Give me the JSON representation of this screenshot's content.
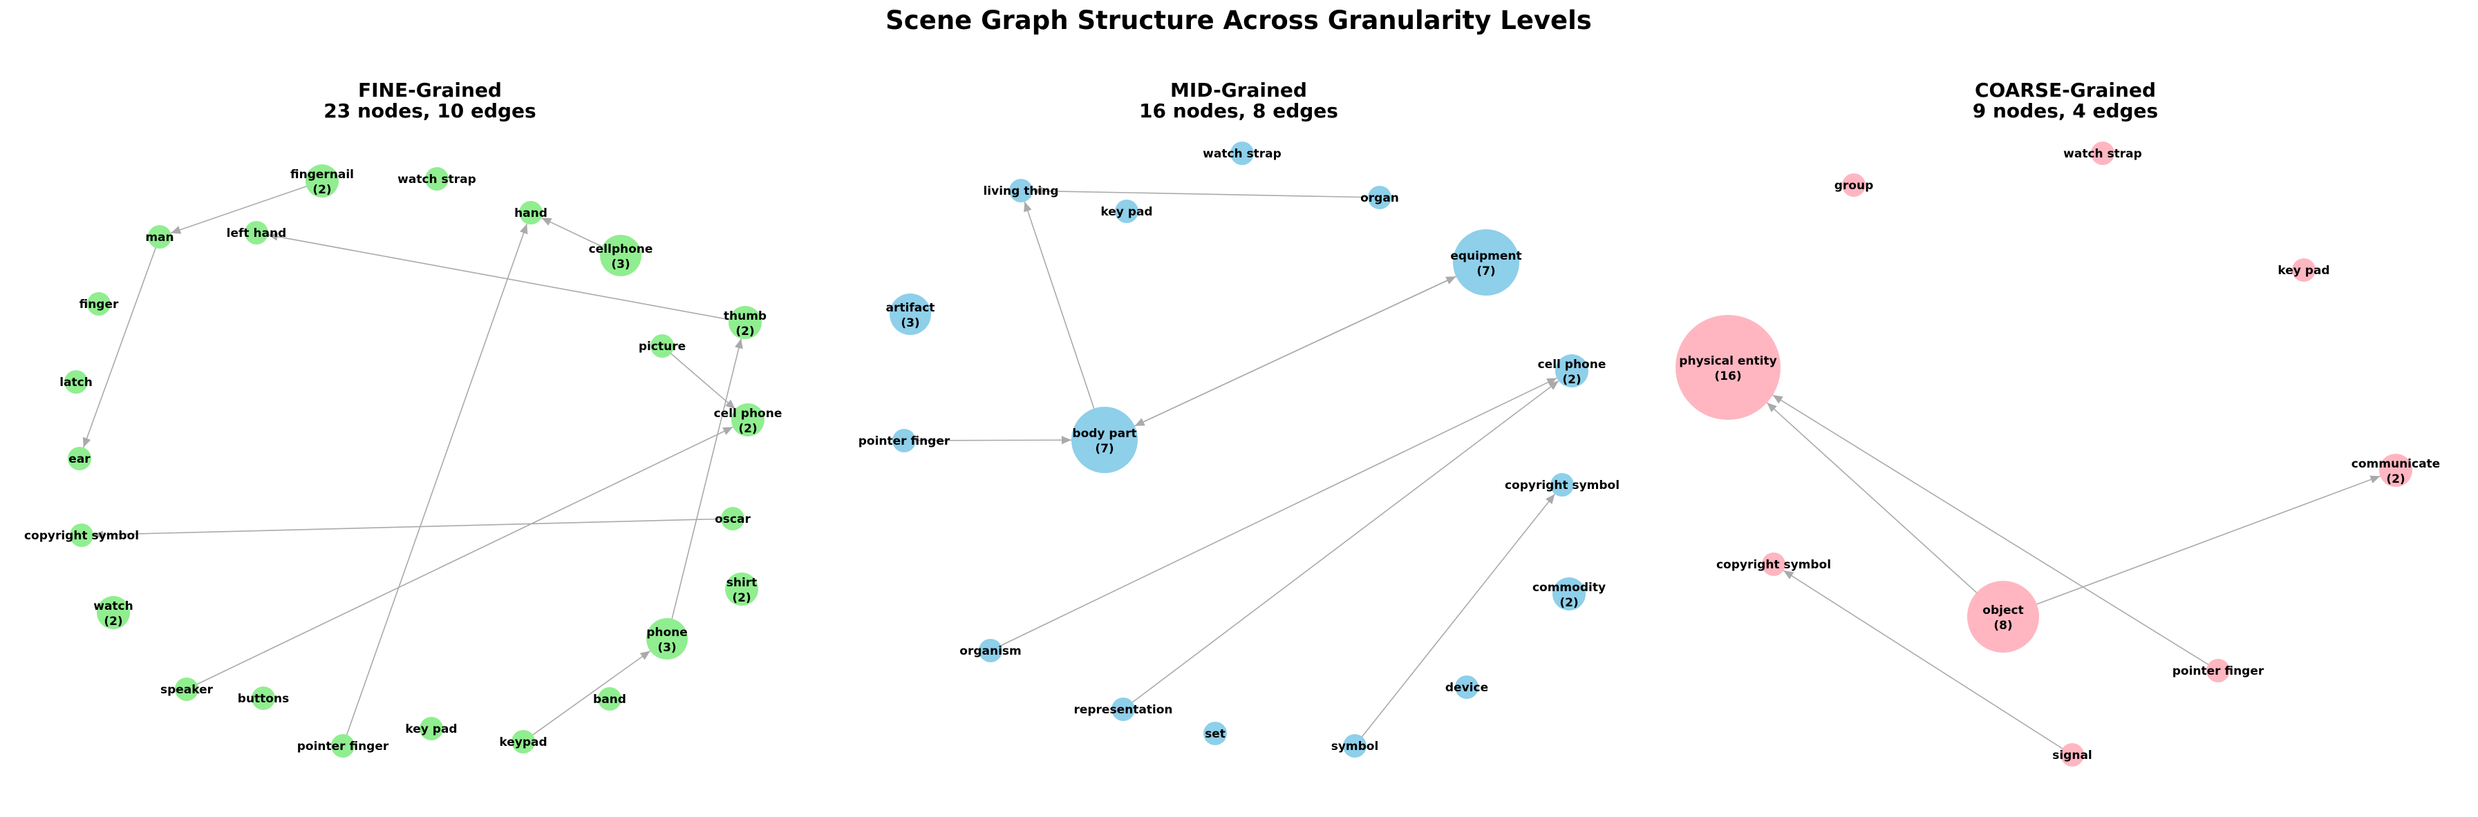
{
  "title": "Scene Graph Structure Across Granularity Levels",
  "panels": [
    {
      "id": "fine",
      "title_line1": "FINE-Grained",
      "title_line2": "23 nodes, 10 edges",
      "node_color": "#90EE90",
      "nodes": [
        {
          "id": "fingernail",
          "label": "fingernail",
          "count": "(2)",
          "weight": 2
        },
        {
          "id": "watch_strap",
          "label": "watch strap",
          "count": "",
          "weight": 1
        },
        {
          "id": "hand",
          "label": "hand",
          "count": "",
          "weight": 1
        },
        {
          "id": "cellphone",
          "label": "cellphone",
          "count": "(3)",
          "weight": 3
        },
        {
          "id": "man",
          "label": "man",
          "count": "",
          "weight": 1
        },
        {
          "id": "left_hand",
          "label": "left hand",
          "count": "",
          "weight": 1
        },
        {
          "id": "finger",
          "label": "finger",
          "count": "",
          "weight": 1
        },
        {
          "id": "thumb",
          "label": "thumb",
          "count": "(2)",
          "weight": 2
        },
        {
          "id": "picture",
          "label": "picture",
          "count": "",
          "weight": 1
        },
        {
          "id": "latch",
          "label": "latch",
          "count": "",
          "weight": 1
        },
        {
          "id": "cell_phone",
          "label": "cell phone",
          "count": "(2)",
          "weight": 2
        },
        {
          "id": "ear",
          "label": "ear",
          "count": "",
          "weight": 1
        },
        {
          "id": "oscar",
          "label": "oscar",
          "count": "",
          "weight": 1
        },
        {
          "id": "copyright_symbol",
          "label": "copyright symbol",
          "count": "",
          "weight": 1
        },
        {
          "id": "shirt",
          "label": "shirt",
          "count": "(2)",
          "weight": 2
        },
        {
          "id": "watch",
          "label": "watch",
          "count": "(2)",
          "weight": 2
        },
        {
          "id": "phone",
          "label": "phone",
          "count": "(3)",
          "weight": 3
        },
        {
          "id": "speaker",
          "label": "speaker",
          "count": "",
          "weight": 1
        },
        {
          "id": "buttons",
          "label": "buttons",
          "count": "",
          "weight": 1
        },
        {
          "id": "band",
          "label": "band",
          "count": "",
          "weight": 1
        },
        {
          "id": "key_pad",
          "label": "key pad",
          "count": "",
          "weight": 1
        },
        {
          "id": "keypad",
          "label": "keypad",
          "count": "",
          "weight": 1
        },
        {
          "id": "pointer_finger",
          "label": "pointer finger",
          "count": "",
          "weight": 1
        }
      ],
      "edges": [
        {
          "source": "fingernail",
          "target": "man"
        },
        {
          "source": "man",
          "target": "ear"
        },
        {
          "source": "cellphone",
          "target": "hand"
        },
        {
          "source": "thumb",
          "target": "left_hand"
        },
        {
          "source": "picture",
          "target": "cell_phone"
        },
        {
          "source": "speaker",
          "target": "cell_phone"
        },
        {
          "source": "oscar",
          "target": "copyright_symbol"
        },
        {
          "source": "phone",
          "target": "thumb"
        },
        {
          "source": "pointer_finger",
          "target": "hand"
        },
        {
          "source": "keypad",
          "target": "phone"
        }
      ]
    },
    {
      "id": "mid",
      "title_line1": "MID-Grained",
      "title_line2": "16 nodes, 8 edges",
      "node_color": "#8ECFEA",
      "nodes": [
        {
          "id": "watch_strap",
          "label": "watch strap",
          "count": "",
          "weight": 1
        },
        {
          "id": "living_thing",
          "label": "living thing",
          "count": "",
          "weight": 1
        },
        {
          "id": "key_pad",
          "label": "key pad",
          "count": "",
          "weight": 1
        },
        {
          "id": "organ",
          "label": "organ",
          "count": "",
          "weight": 1
        },
        {
          "id": "equipment",
          "label": "equipment",
          "count": "(7)",
          "weight": 7
        },
        {
          "id": "artifact",
          "label": "artifact",
          "count": "(3)",
          "weight": 3
        },
        {
          "id": "cell_phone",
          "label": "cell phone",
          "count": "(2)",
          "weight": 2
        },
        {
          "id": "body_part",
          "label": "body part",
          "count": "(7)",
          "weight": 7
        },
        {
          "id": "pointer_finger",
          "label": "pointer finger",
          "count": "",
          "weight": 1
        },
        {
          "id": "copyright_symbol",
          "label": "copyright symbol",
          "count": "",
          "weight": 1
        },
        {
          "id": "commodity",
          "label": "commodity",
          "count": "(2)",
          "weight": 2
        },
        {
          "id": "organism",
          "label": "organism",
          "count": "",
          "weight": 1
        },
        {
          "id": "device",
          "label": "device",
          "count": "",
          "weight": 1
        },
        {
          "id": "representation",
          "label": "representation",
          "count": "",
          "weight": 1
        },
        {
          "id": "set",
          "label": "set",
          "count": "",
          "weight": 1
        },
        {
          "id": "symbol",
          "label": "symbol",
          "count": "",
          "weight": 1
        }
      ],
      "edges": [
        {
          "source": "organ",
          "target": "living_thing"
        },
        {
          "source": "body_part",
          "target": "living_thing"
        },
        {
          "source": "equipment",
          "target": "body_part"
        },
        {
          "source": "pointer_finger",
          "target": "body_part"
        },
        {
          "source": "organism",
          "target": "cell_phone"
        },
        {
          "source": "representation",
          "target": "cell_phone"
        },
        {
          "source": "symbol",
          "target": "copyright_symbol"
        },
        {
          "source": "body_part",
          "target": "equipment"
        }
      ]
    },
    {
      "id": "coarse",
      "title_line1": "COARSE-Grained",
      "title_line2": "9 nodes, 4 edges",
      "node_color": "#FFB6C1",
      "nodes": [
        {
          "id": "watch_strap",
          "label": "watch strap",
          "count": "",
          "weight": 1
        },
        {
          "id": "group",
          "label": "group",
          "count": "",
          "weight": 1
        },
        {
          "id": "key_pad",
          "label": "key pad",
          "count": "",
          "weight": 1
        },
        {
          "id": "physical_entity",
          "label": "physical entity",
          "count": "(16)",
          "weight": 16
        },
        {
          "id": "communicate",
          "label": "communicate",
          "count": "(2)",
          "weight": 2
        },
        {
          "id": "copyright_symbol",
          "label": "copyright symbol",
          "count": "",
          "weight": 1
        },
        {
          "id": "object",
          "label": "object",
          "count": "(8)",
          "weight": 8
        },
        {
          "id": "pointer_finger",
          "label": "pointer finger",
          "count": "",
          "weight": 1
        },
        {
          "id": "signal",
          "label": "signal",
          "count": "",
          "weight": 1
        }
      ],
      "edges": [
        {
          "source": "object",
          "target": "physical_entity"
        },
        {
          "source": "pointer_finger",
          "target": "physical_entity"
        },
        {
          "source": "object",
          "target": "communicate"
        },
        {
          "source": "signal",
          "target": "copyright_symbol"
        }
      ]
    }
  ]
}
